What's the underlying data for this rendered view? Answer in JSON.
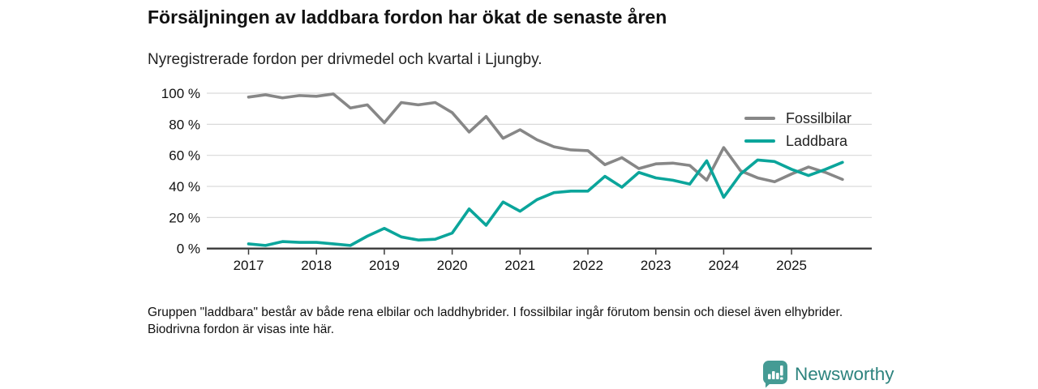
{
  "header": {
    "title": "Försäljningen av laddbara fordon har ökat de senaste åren",
    "subtitle": "Nyregistrerade fordon per drivmedel och kvartal i Ljungby."
  },
  "chart_data": {
    "type": "line",
    "x_unit": "quarter",
    "categories": [
      "2017 Q1",
      "2017 Q2",
      "2017 Q3",
      "2017 Q4",
      "2018 Q1",
      "2018 Q2",
      "2018 Q3",
      "2018 Q4",
      "2019 Q1",
      "2019 Q2",
      "2019 Q3",
      "2019 Q4",
      "2020 Q1",
      "2020 Q2",
      "2020 Q3",
      "2020 Q4",
      "2021 Q1",
      "2021 Q2",
      "2021 Q3",
      "2021 Q4",
      "2022 Q1",
      "2022 Q2",
      "2022 Q3",
      "2022 Q4",
      "2023 Q1",
      "2023 Q2",
      "2023 Q3",
      "2023 Q4",
      "2024 Q1",
      "2024 Q2",
      "2024 Q3",
      "2024 Q4",
      "2025 Q1",
      "2025 Q2",
      "2025 Q3",
      "2025 Q4"
    ],
    "x_ticks": [
      "2017",
      "2018",
      "2019",
      "2020",
      "2021",
      "2022",
      "2023",
      "2024",
      "2025"
    ],
    "series": [
      {
        "name": "Fossilbilar",
        "color": "#878787",
        "values": [
          97.5,
          99,
          97,
          98.5,
          98,
          99.5,
          90.5,
          92.5,
          81,
          94,
          92.5,
          94,
          87.5,
          75,
          85,
          71,
          76.5,
          70,
          65.5,
          63.5,
          63,
          54,
          58.5,
          51.5,
          54.5,
          55,
          53.5,
          44,
          65,
          50,
          45.5,
          43,
          48,
          52.5,
          49,
          44.5
        ]
      },
      {
        "name": "Laddbara",
        "color": "#0ba59b",
        "values": [
          3,
          2,
          4.5,
          4,
          4,
          3,
          2,
          8,
          13,
          7.5,
          5.5,
          6,
          10,
          25.5,
          15,
          30,
          24,
          31.5,
          36,
          37,
          37,
          46.5,
          39.5,
          49,
          45.5,
          44,
          41.5,
          56.5,
          33,
          48,
          57,
          56,
          51,
          47,
          51,
          55.5
        ]
      }
    ],
    "y_ticks": [
      0,
      20,
      40,
      60,
      80,
      100
    ],
    "y_tick_suffix": " %",
    "ylim": [
      0,
      100
    ],
    "grid": "horizontal",
    "legend_position": "top-right"
  },
  "footer": {
    "note": "Gruppen \"laddbara\" består av både rena elbilar och laddhybrider. I fossilbilar ingår förutom bensin och diesel även elhybrider. Biodrivna fordon är visas inte här."
  },
  "branding": {
    "logo_text": "Newsworthy",
    "logo_icon": "bar-chart-pin-icon",
    "text_color": "#2d837e",
    "icon_color": "#459b94"
  },
  "colors": {
    "fossil_line": "#878787",
    "laddbara_line": "#0ba59b",
    "gridline": "#d9d9d9",
    "axis": "#3a3a3a",
    "text": "#111111"
  }
}
